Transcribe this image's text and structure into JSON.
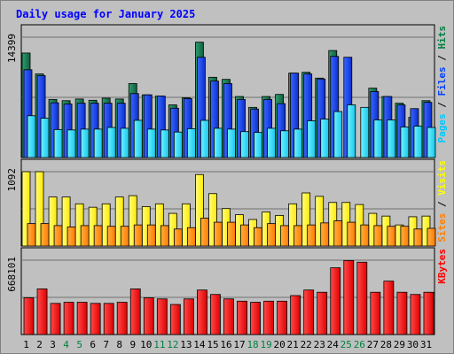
{
  "chart_data": {
    "type": "bar",
    "title": "Daily usage for January 2025",
    "days": [
      "1",
      "2",
      "3",
      "4",
      "5",
      "6",
      "7",
      "8",
      "9",
      "10",
      "11",
      "12",
      "13",
      "14",
      "15",
      "16",
      "17",
      "18",
      "19",
      "20",
      "21",
      "22",
      "23",
      "24",
      "25",
      "26",
      "27",
      "28",
      "29",
      "30",
      "31"
    ],
    "weekend_days": [
      "4",
      "5",
      "11",
      "12",
      "18",
      "19",
      "25",
      "26"
    ],
    "panels": [
      {
        "id": "hits_panel",
        "max_label": "14399",
        "ylim": [
          0,
          14399
        ],
        "right_labels": [
          {
            "text": "Pages",
            "color": "#00c8ff"
          },
          {
            "text": "Files",
            "color": "#0040ff"
          },
          {
            "text": "Hits",
            "color": "#008040"
          }
        ],
        "series": [
          {
            "name": "Hits",
            "color": "#00805c",
            "values": [
              12500,
              10000,
              6950,
              6800,
              7000,
              6850,
              7100,
              7000,
              8850,
              7500,
              7350,
              6300,
              7150,
              13800,
              9600,
              9350,
              7300,
              6000,
              7300,
              7550,
              10100,
              10200,
              9500,
              12800,
              0,
              0,
              8300,
              7300,
              6500,
              4800,
              6800
            ]
          },
          {
            "name": "Files",
            "color": "#0040ff",
            "values": [
              10500,
              9800,
              6550,
              6400,
              6500,
              6500,
              6500,
              6500,
              7650,
              7500,
              7350,
              5900,
              7050,
              12000,
              9150,
              8850,
              6950,
              5800,
              6950,
              6450,
              10100,
              10000,
              9400,
              12100,
              12000,
              0,
              7900,
              7300,
              6300,
              5850,
              6600
            ]
          },
          {
            "name": "Pages",
            "color": "#00e0ff",
            "values": [
              5000,
              4700,
              3350,
              3300,
              3400,
              3400,
              3600,
              3500,
              4450,
              3400,
              3300,
              3050,
              3450,
              4450,
              3500,
              3400,
              3100,
              3000,
              3500,
              3200,
              3400,
              4400,
              4600,
              5500,
              6300,
              6000,
              4500,
              4500,
              3650,
              3750,
              3600
            ]
          }
        ]
      },
      {
        "id": "visits_panel",
        "max_label": "1092",
        "ylim": [
          0,
          1092
        ],
        "right_labels": [
          {
            "text": "Sites",
            "color": "#ff8000"
          },
          {
            "text": "Visits",
            "color": "#ffff00"
          }
        ],
        "series": [
          {
            "name": "Visits",
            "color": "#ffff00",
            "values": [
              1092,
              1092,
              720,
              720,
              620,
              570,
              620,
              720,
              740,
              580,
              620,
              480,
              620,
              1050,
              770,
              550,
              460,
              390,
              500,
              450,
              620,
              780,
              730,
              640,
              640,
              610,
              480,
              440,
              310,
              430,
              440
            ]
          },
          {
            "name": "Sites",
            "color": "#ff8000",
            "values": [
              330,
              330,
              300,
              280,
              300,
              300,
              290,
              290,
              310,
              310,
              300,
              250,
              270,
              410,
              350,
              350,
              310,
              270,
              330,
              300,
              300,
              310,
              340,
              370,
              350,
              310,
              300,
              290,
              290,
              250,
              260
            ]
          }
        ]
      },
      {
        "id": "kbytes_panel",
        "max_label": "668101",
        "ylim": [
          0,
          668101
        ],
        "right_labels": [
          {
            "text": "KBytes",
            "color": "#ff0000"
          }
        ],
        "series": [
          {
            "name": "KBytes",
            "color": "#ff0000",
            "values": [
              330000,
              410000,
              280000,
              290000,
              290000,
              280000,
              280000,
              290000,
              410000,
              330000,
              320000,
              270000,
              320000,
              400000,
              360000,
              320000,
              300000,
              290000,
              300000,
              300000,
              350000,
              400000,
              380000,
              600000,
              665000,
              650000,
              380000,
              480000,
              380000,
              360000,
              380000
            ]
          }
        ]
      }
    ]
  }
}
